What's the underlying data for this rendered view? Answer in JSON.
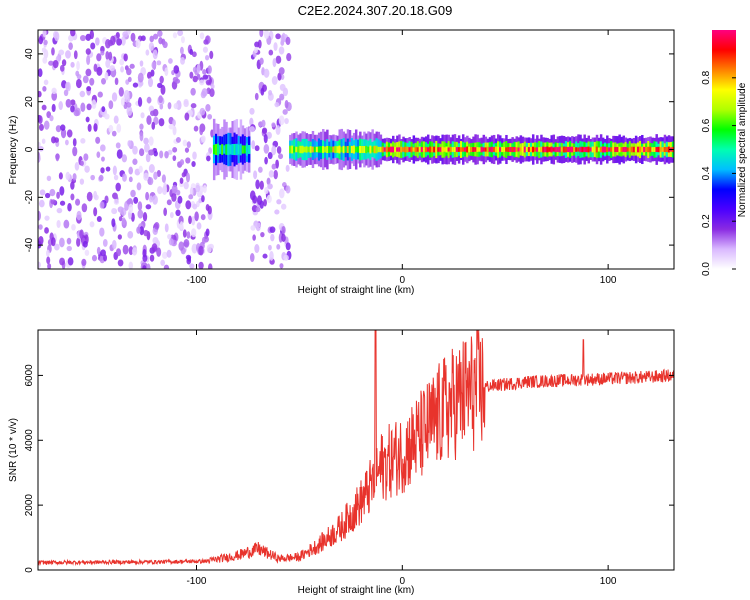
{
  "title": "C2E2.2024.307.20.18.G09",
  "chart_data": [
    {
      "type": "heatmap",
      "xlabel": "Height of straight line (km)",
      "ylabel": "Frequency (Hz)",
      "xlim": [
        -177,
        132
      ],
      "ylim": [
        -50,
        50
      ],
      "x_ticks": [
        -100,
        0,
        100
      ],
      "x_tick_labels": [
        "-100",
        "0",
        "100"
      ],
      "y_ticks": [
        -40,
        -20,
        0,
        20,
        40
      ],
      "y_tick_labels": [
        "-40",
        "-20",
        "0",
        "20",
        "40"
      ],
      "colorbar": {
        "label": "Normalized spectral amplitude",
        "range": [
          0,
          1
        ],
        "ticks": [
          0.0,
          0.2,
          0.4,
          0.6,
          0.8
        ],
        "tick_labels": [
          "0.0",
          "0.2",
          "0.4",
          "0.6",
          "0.8"
        ],
        "colors": [
          "#ffffff",
          "#d9b8ff",
          "#8a2be2",
          "#4a00ff",
          "#0000ff",
          "#00bfff",
          "#00ffb0",
          "#00ff00",
          "#b0ff00",
          "#ffff00",
          "#ff8000",
          "#ff0000",
          "#ff007f"
        ]
      },
      "regions": [
        {
          "x_range": [
            -177,
            -92
          ],
          "description": "scattered purple noise",
          "level": 0.12
        },
        {
          "x_range": [
            -92,
            -74
          ],
          "freq_half_width": 6,
          "level": 0.35
        },
        {
          "x_range": [
            -74,
            -55
          ],
          "description": "scattered purple noise",
          "level": 0.12
        },
        {
          "x_range": [
            -55,
            -10
          ],
          "freq_half_width": 4,
          "level": 0.45
        },
        {
          "x_range": [
            -10,
            132
          ],
          "freq_half_width": 3,
          "level": 0.6
        }
      ]
    },
    {
      "type": "line",
      "xlabel": "Height of straight line (km)",
      "ylabel": "SNR (10 * v/v)",
      "xlim": [
        -177,
        132
      ],
      "ylim": [
        0,
        7400
      ],
      "x_ticks": [
        -100,
        0,
        100
      ],
      "x_tick_labels": [
        "-100",
        "0",
        "100"
      ],
      "y_ticks": [
        0,
        2000,
        4000,
        6000
      ],
      "y_tick_labels": [
        "0",
        "2000",
        "4000",
        "6000"
      ],
      "series": [
        {
          "color": "#e8332c",
          "x": [
            -177,
            -150,
            -120,
            -95,
            -80,
            -70,
            -60,
            -50,
            -40,
            -30,
            -20,
            -13,
            -10,
            -5,
            0,
            10,
            20,
            30,
            40,
            60,
            80,
            100,
            120,
            132
          ],
          "values": [
            230,
            240,
            250,
            270,
            450,
            650,
            350,
            400,
            800,
            1300,
            2100,
            2800,
            3200,
            3400,
            3600,
            4200,
            4900,
            5400,
            5650,
            5800,
            5850,
            5900,
            5950,
            6000
          ]
        }
      ],
      "peaks": [
        {
          "x": -13,
          "value": 7400
        },
        {
          "x": 88,
          "value": 7100
        }
      ]
    }
  ]
}
